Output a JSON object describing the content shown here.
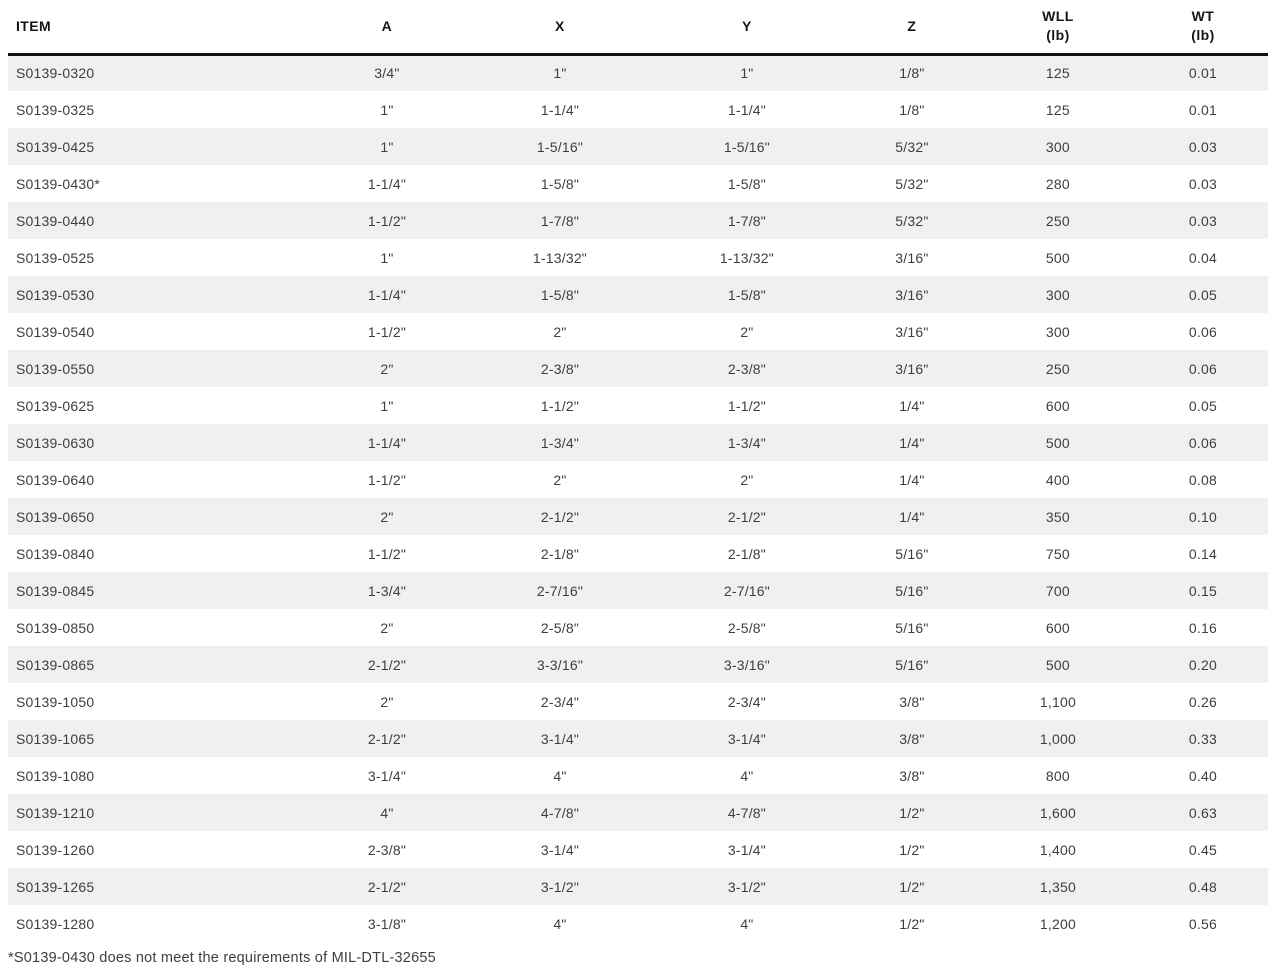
{
  "colors": {
    "header_text": "#161616",
    "header_rule": "#111111",
    "body_text": "#3e3e3e",
    "shaded_row_bg": "#f0f0f0",
    "bottom_rule": "#e4e4e4",
    "page_bg": "#ffffff"
  },
  "chart_data": {
    "type": "table",
    "title": "",
    "columns": [
      {
        "key": "item",
        "label": "ITEM",
        "sub": ""
      },
      {
        "key": "a",
        "label": "A",
        "sub": ""
      },
      {
        "key": "x",
        "label": "X",
        "sub": ""
      },
      {
        "key": "y",
        "label": "Y",
        "sub": ""
      },
      {
        "key": "z",
        "label": "Z",
        "sub": ""
      },
      {
        "key": "wll",
        "label": "WLL",
        "sub": "(lb)"
      },
      {
        "key": "wt",
        "label": "WT",
        "sub": "(lb)"
      }
    ],
    "rows": [
      [
        "S0139-0320",
        "3/4\"",
        "1\"",
        "1\"",
        "1/8\"",
        "125",
        "0.01"
      ],
      [
        "S0139-0325",
        "1\"",
        "1-1/4\"",
        "1-1/4\"",
        "1/8\"",
        "125",
        "0.01"
      ],
      [
        "S0139-0425",
        "1\"",
        "1-5/16\"",
        "1-5/16\"",
        "5/32\"",
        "300",
        "0.03"
      ],
      [
        "S0139-0430*",
        "1-1/4\"",
        "1-5/8\"",
        "1-5/8\"",
        "5/32\"",
        "280",
        "0.03"
      ],
      [
        "S0139-0440",
        "1-1/2\"",
        "1-7/8\"",
        "1-7/8\"",
        "5/32\"",
        "250",
        "0.03"
      ],
      [
        "S0139-0525",
        "1\"",
        "1-13/32\"",
        "1-13/32\"",
        "3/16\"",
        "500",
        "0.04"
      ],
      [
        "S0139-0530",
        "1-1/4\"",
        "1-5/8\"",
        "1-5/8\"",
        "3/16\"",
        "300",
        "0.05"
      ],
      [
        "S0139-0540",
        "1-1/2\"",
        "2\"",
        "2\"",
        "3/16\"",
        "300",
        "0.06"
      ],
      [
        "S0139-0550",
        "2\"",
        "2-3/8\"",
        "2-3/8\"",
        "3/16\"",
        "250",
        "0.06"
      ],
      [
        "S0139-0625",
        "1\"",
        "1-1/2\"",
        "1-1/2\"",
        "1/4\"",
        "600",
        "0.05"
      ],
      [
        "S0139-0630",
        "1-1/4\"",
        "1-3/4\"",
        "1-3/4\"",
        "1/4\"",
        "500",
        "0.06"
      ],
      [
        "S0139-0640",
        "1-1/2\"",
        "2\"",
        "2\"",
        "1/4\"",
        "400",
        "0.08"
      ],
      [
        "S0139-0650",
        "2\"",
        "2-1/2\"",
        "2-1/2\"",
        "1/4\"",
        "350",
        "0.10"
      ],
      [
        "S0139-0840",
        "1-1/2\"",
        "2-1/8\"",
        "2-1/8\"",
        "5/16\"",
        "750",
        "0.14"
      ],
      [
        "S0139-0845",
        "1-3/4\"",
        "2-7/16\"",
        "2-7/16\"",
        "5/16\"",
        "700",
        "0.15"
      ],
      [
        "S0139-0850",
        "2\"",
        "2-5/8\"",
        "2-5/8\"",
        "5/16\"",
        "600",
        "0.16"
      ],
      [
        "S0139-0865",
        "2-1/2\"",
        "3-3/16\"",
        "3-3/16\"",
        "5/16\"",
        "500",
        "0.20"
      ],
      [
        "S0139-1050",
        "2\"",
        "2-3/4\"",
        "2-3/4\"",
        "3/8\"",
        "1,100",
        "0.26"
      ],
      [
        "S0139-1065",
        "2-1/2\"",
        "3-1/4\"",
        "3-1/4\"",
        "3/8\"",
        "1,000",
        "0.33"
      ],
      [
        "S0139-1080",
        "3-1/4\"",
        "4\"",
        "4\"",
        "3/8\"",
        "800",
        "0.40"
      ],
      [
        "S0139-1210",
        "4\"",
        "4-7/8\"",
        "4-7/8\"",
        "1/2\"",
        "1,600",
        "0.63"
      ],
      [
        "S0139-1260",
        "2-3/8\"",
        "3-1/4\"",
        "3-1/4\"",
        "1/2\"",
        "1,400",
        "0.45"
      ],
      [
        "S0139-1265",
        "2-1/2\"",
        "3-1/2\"",
        "3-1/2\"",
        "1/2\"",
        "1,350",
        "0.48"
      ],
      [
        "S0139-1280",
        "3-1/8\"",
        "4\"",
        "4\"",
        "1/2\"",
        "1,200",
        "0.56"
      ]
    ],
    "footnote": "*S0139-0430 does not meet the requirements of MIL-DTL-32655"
  }
}
